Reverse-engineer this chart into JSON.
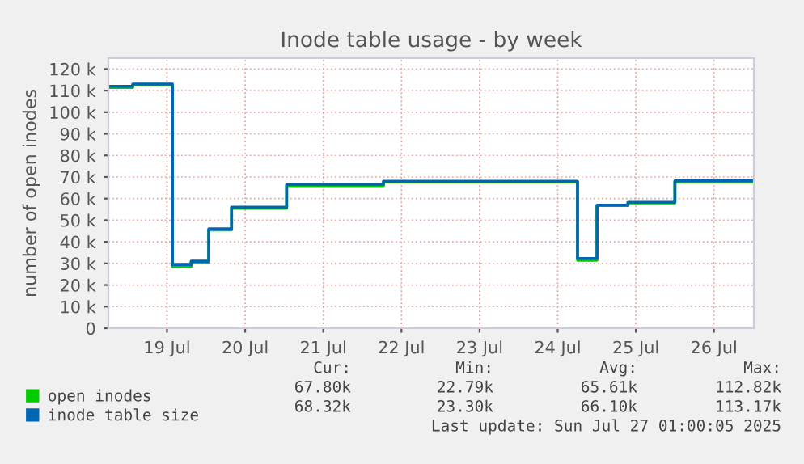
{
  "chart_data": {
    "type": "step",
    "title": "Inode table usage - by week",
    "ylabel": "number of open inodes",
    "x": [
      "2025-07-18T18:00",
      "2025-07-19T01:30",
      "2025-07-19T13:40",
      "2025-07-19T19:25",
      "2025-07-20T00:50",
      "2025-07-20T07:50",
      "2025-07-21T00:45",
      "2025-07-22T06:30",
      "2025-07-24T18:05",
      "2025-07-25T00:05",
      "2025-07-25T09:35",
      "2025-07-26T00:00",
      "2025-07-27T00:15"
    ],
    "series": [
      {
        "name": "open inodes",
        "color": "#00cc00",
        "values": [
          111500,
          112800,
          28500,
          30500,
          45500,
          55500,
          66000,
          67800,
          31500,
          56800,
          58000,
          67800,
          67800
        ]
      },
      {
        "name": "inode table size",
        "color": "#0066b3",
        "values": [
          112000,
          113000,
          29500,
          31000,
          46000,
          56000,
          66500,
          68000,
          32300,
          57000,
          58300,
          68200,
          68300
        ]
      }
    ],
    "xlim": [
      "2025-07-18T18:00",
      "2025-07-27T00:15"
    ],
    "xticks": [
      {
        "value": "2025-07-19T12:00",
        "label": "19 Jul"
      },
      {
        "value": "2025-07-20T12:00",
        "label": "20 Jul"
      },
      {
        "value": "2025-07-21T12:00",
        "label": "21 Jul"
      },
      {
        "value": "2025-07-22T12:00",
        "label": "22 Jul"
      },
      {
        "value": "2025-07-23T12:00",
        "label": "23 Jul"
      },
      {
        "value": "2025-07-24T12:00",
        "label": "24 Jul"
      },
      {
        "value": "2025-07-25T12:00",
        "label": "25 Jul"
      },
      {
        "value": "2025-07-26T12:00",
        "label": "26 Jul"
      }
    ],
    "ylim": [
      0,
      125000
    ],
    "yticks": [
      0,
      {
        "value": 10000,
        "label": "10 k"
      },
      {
        "value": 20000,
        "label": "20 k"
      },
      {
        "value": 30000,
        "label": "30 k"
      },
      {
        "value": 40000,
        "label": "40 k"
      },
      {
        "value": 50000,
        "label": "50 k"
      },
      {
        "value": 60000,
        "label": "60 k"
      },
      {
        "value": 70000,
        "label": "70 k"
      },
      {
        "value": 80000,
        "label": "80 k"
      },
      {
        "value": 90000,
        "label": "90 k"
      },
      {
        "value": 100000,
        "label": "100 k"
      },
      {
        "value": 110000,
        "label": "110 k"
      },
      {
        "value": 120000,
        "label": "120 k"
      }
    ],
    "grid": true,
    "legend": "bottom",
    "annotations": [
      "Cur:",
      "Min:",
      "Avg:",
      "Max:",
      "67.80k",
      "22.79k",
      "65.61k",
      "112.82k",
      "68.32k",
      "23.30k",
      "66.10k",
      "113.17k",
      "Last update: Sun Jul 27 01:00:05 2025"
    ]
  }
}
